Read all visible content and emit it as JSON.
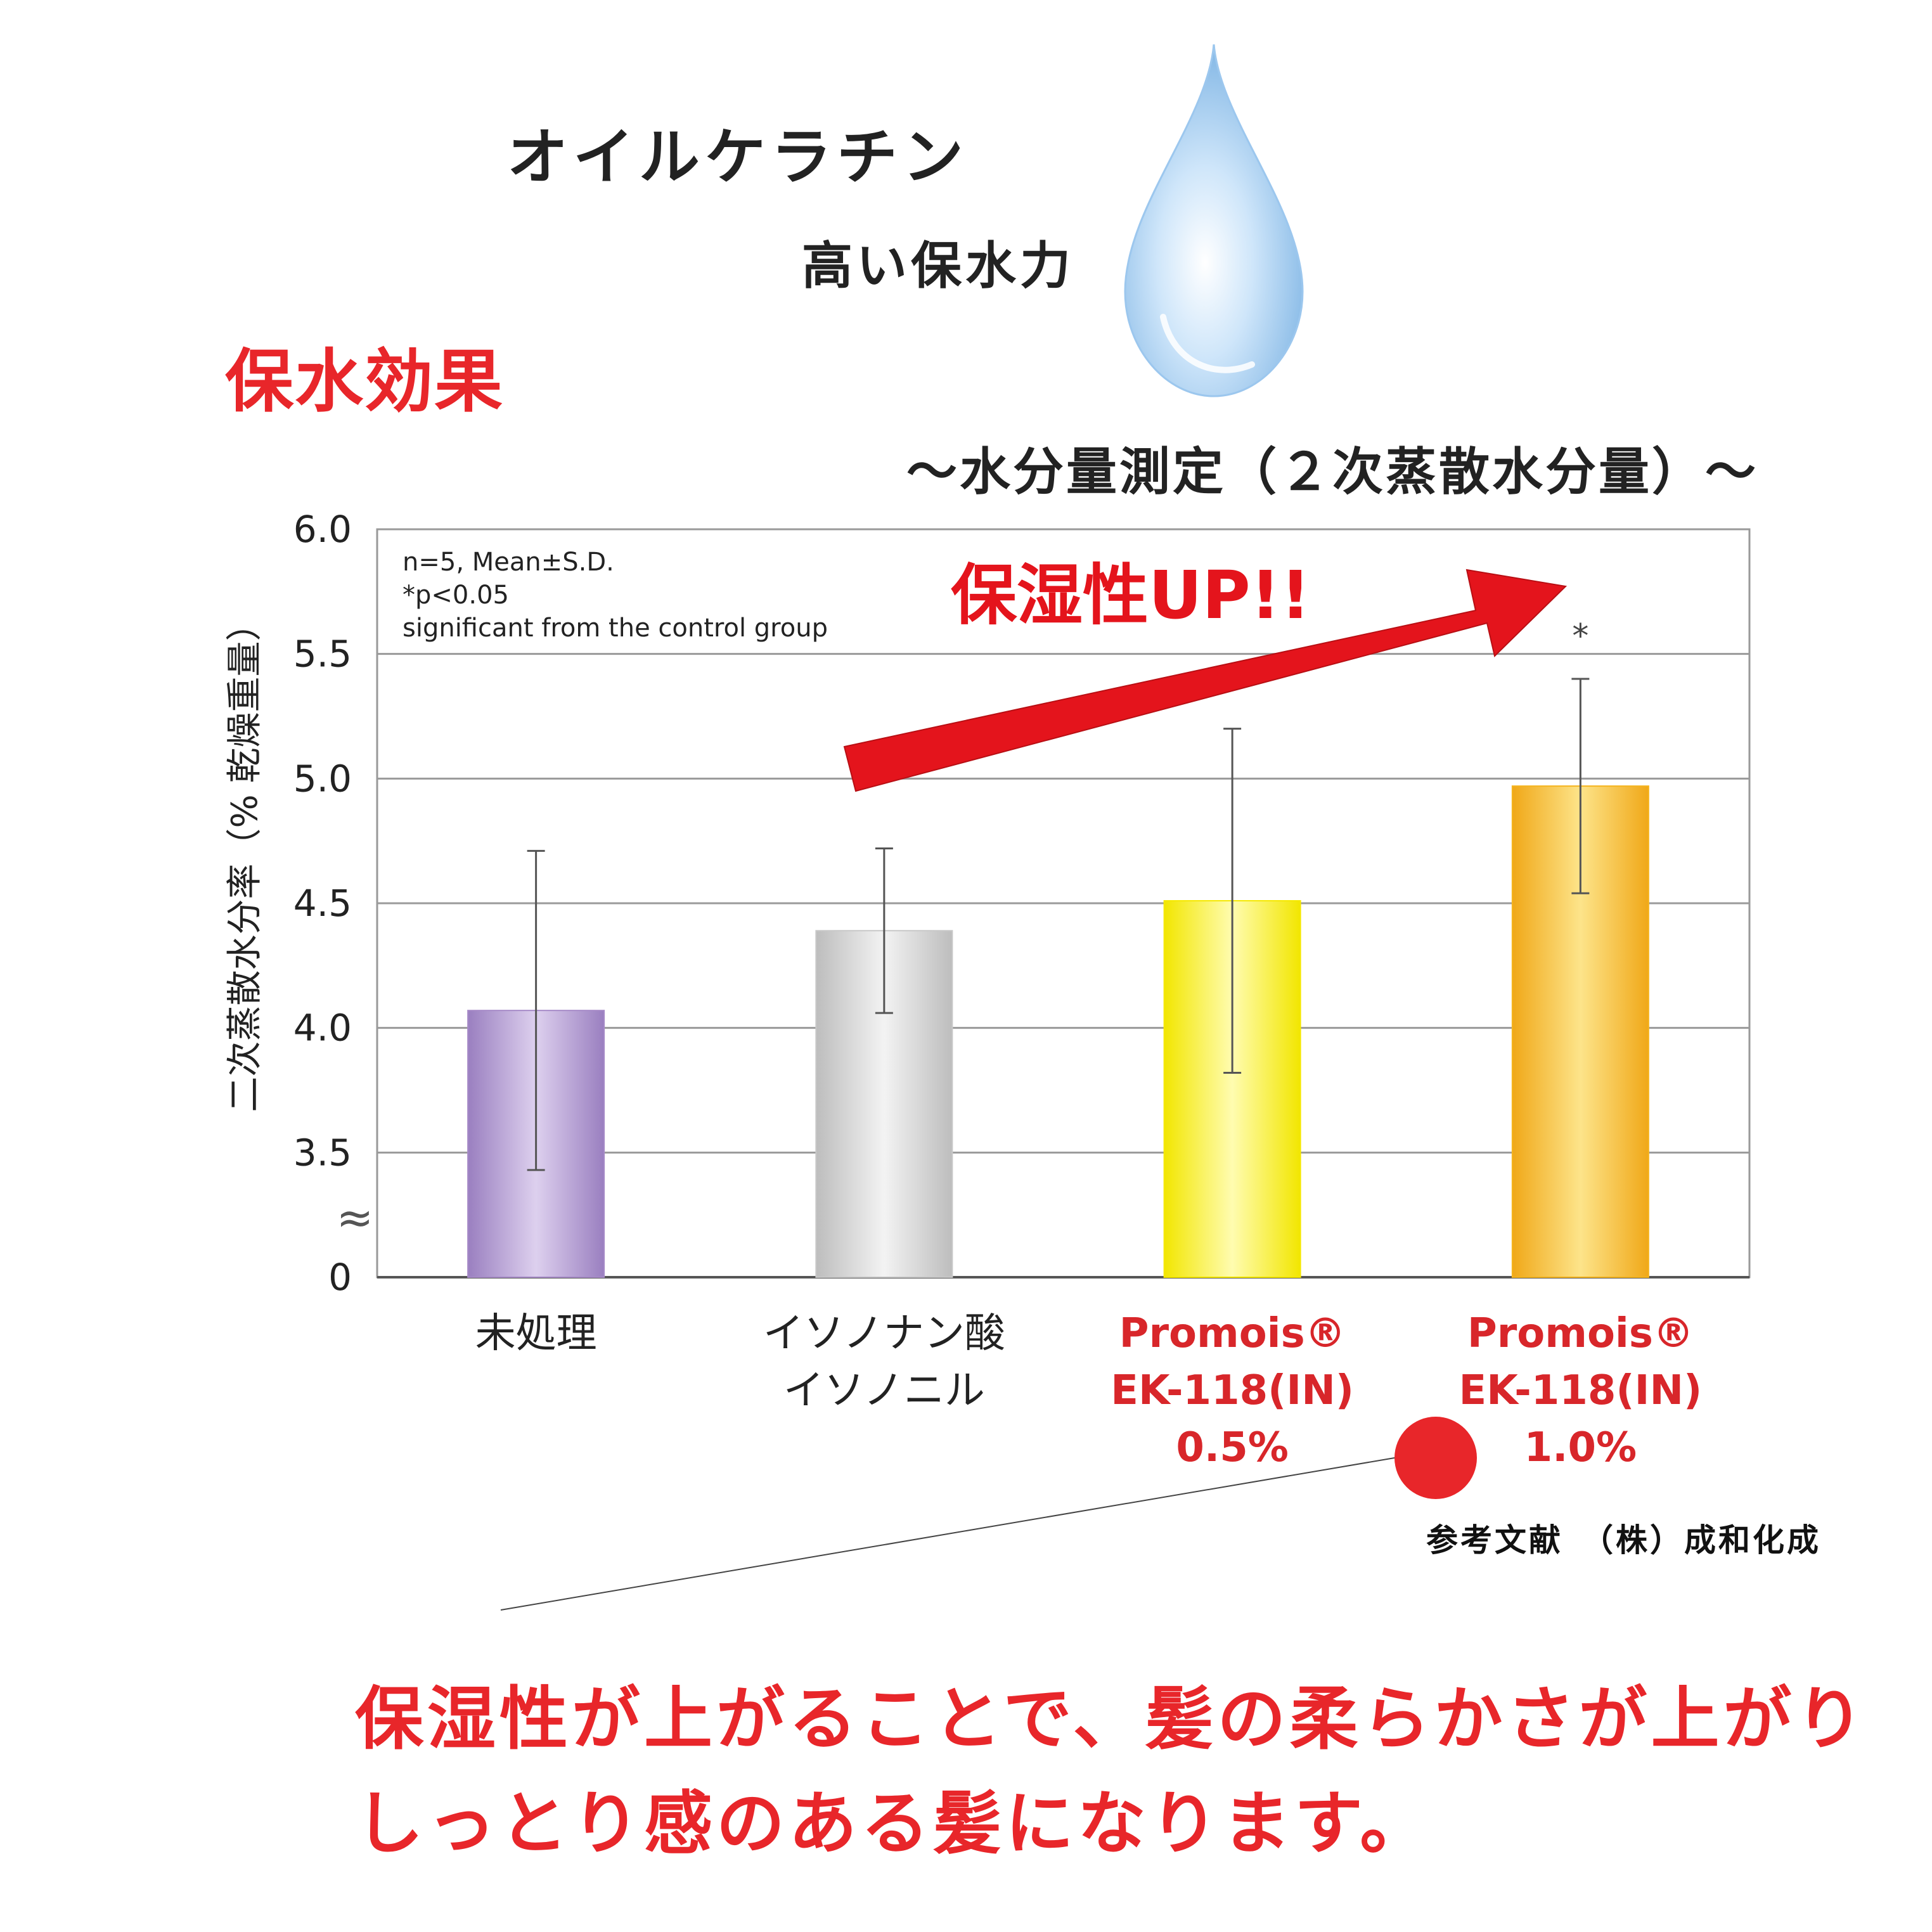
{
  "header": {
    "title": "オイルケラチン",
    "subtitle": "高い保水力",
    "section": "保水効果",
    "measurement": "～水分量測定（２次蒸散水分量）～"
  },
  "reference": "参考文献　（株）成和化成",
  "conclusion": {
    "line1": "保湿性が上がることで、髪の柔らかさが上がり",
    "line2": "しっとり感のある髪になります。"
  },
  "colors": {
    "accent_red": "#e8262a",
    "drop": "#a8cff0"
  },
  "chart_data": {
    "type": "bar",
    "ylabel": "二次蒸散水分率（% 乾燥重量）",
    "ylim": [
      3.0,
      6.0
    ],
    "y_ticks": [
      "6.0",
      "5.5",
      "5.0",
      "4.5",
      "4.0",
      "3.5",
      "0"
    ],
    "axis_break": "≈",
    "grid": true,
    "note_lines": [
      "n=5, Mean±S.D.",
      "*p<0.05",
      "significant from the control group"
    ],
    "arrow_label": "保湿性UP!!",
    "categories": [
      {
        "lines": [
          "未処理"
        ],
        "highlight": false
      },
      {
        "lines": [
          "イソノナン酸",
          "イソノニル"
        ],
        "highlight": false
      },
      {
        "lines": [
          "Promois®",
          "EK-118(IN)",
          "0.5%"
        ],
        "highlight": true
      },
      {
        "lines": [
          "Promois®",
          "EK-118(IN)",
          "1.0%"
        ],
        "highlight": true
      }
    ],
    "values": [
      4.07,
      4.39,
      4.51,
      4.97
    ],
    "error": [
      0.64,
      0.33,
      0.69,
      0.43
    ],
    "significance": [
      "",
      "",
      "",
      "*"
    ],
    "bar_colors": [
      "#a78bc8",
      "#c8c8c8",
      "#f5e800",
      "#f5b41e"
    ]
  }
}
